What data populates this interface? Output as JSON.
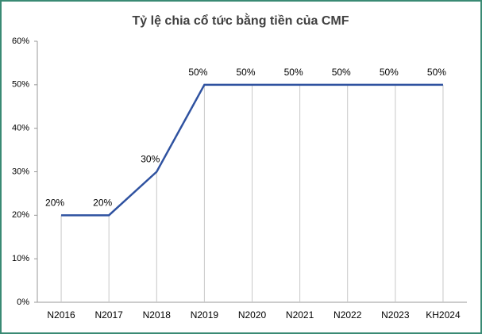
{
  "chart_data": {
    "type": "line",
    "title": "Tỷ lệ chia cổ tức bằng tiền của CMF",
    "categories": [
      "N2016",
      "N2017",
      "N2018",
      "N2019",
      "N2020",
      "N2021",
      "N2022",
      "N2023",
      "KH2024"
    ],
    "values": [
      20,
      20,
      30,
      50,
      50,
      50,
      50,
      50,
      50
    ],
    "value_labels": [
      "20%",
      "20%",
      "30%",
      "50%",
      "50%",
      "50%",
      "50%",
      "50%",
      "50%"
    ],
    "color": "#2f52a0",
    "ylim": [
      0,
      60
    ],
    "yticks": [
      {
        "value": 0,
        "label": "0%"
      },
      {
        "value": 10,
        "label": "10%"
      },
      {
        "value": 20,
        "label": "20%"
      },
      {
        "value": 30,
        "label": "30%"
      },
      {
        "value": 40,
        "label": "40%"
      },
      {
        "value": 50,
        "label": "50%"
      },
      {
        "value": 60,
        "label": "60%"
      }
    ],
    "drop_lines": true
  }
}
